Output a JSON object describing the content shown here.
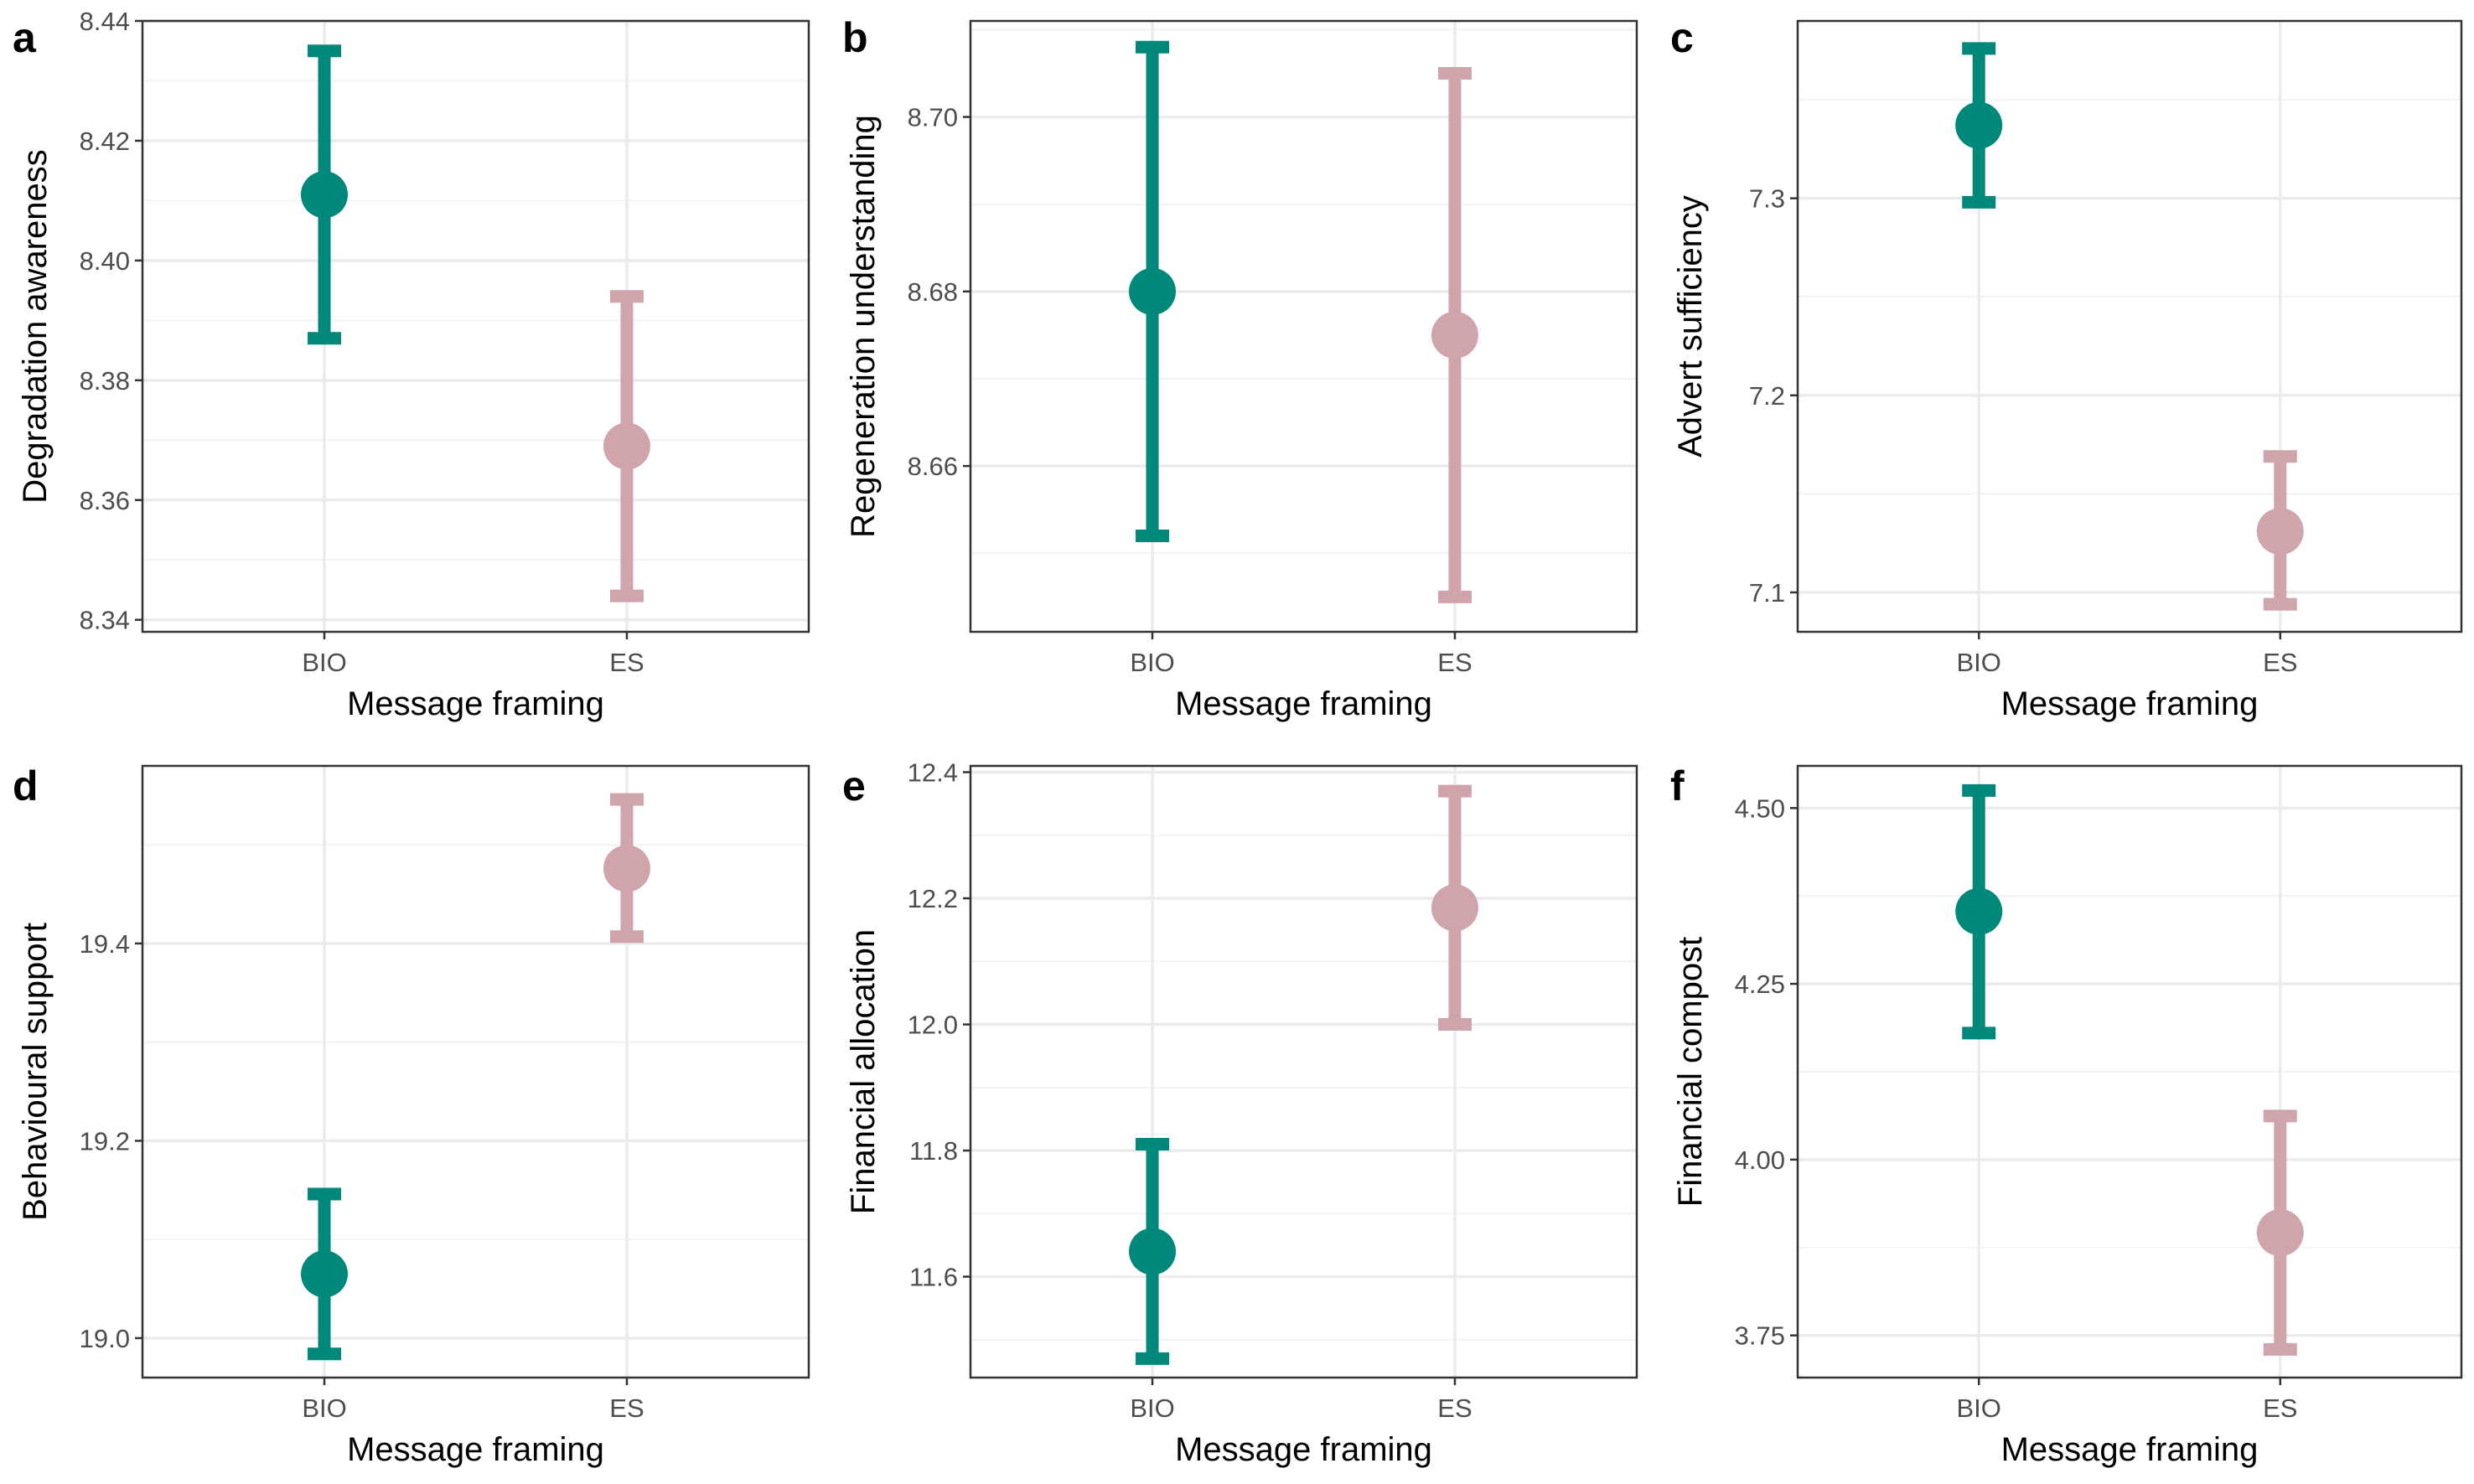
{
  "colors": {
    "BIO": "#00897b",
    "ES": "#d0a4ab",
    "grid_major": "#ebebeb",
    "grid_minor": "#f3f3f3",
    "panel_border": "#333333"
  },
  "chart_data": [
    {
      "panel": "a",
      "type": "errorbar",
      "xlabel": "Message framing",
      "ylabel": "Degradation awareness",
      "categories": [
        "BIO",
        "ES"
      ],
      "ylim": [
        8.338,
        8.44
      ],
      "yticks": [
        8.34,
        8.36,
        8.38,
        8.4,
        8.42,
        8.44
      ],
      "yticklabels": [
        "8.34",
        "8.36",
        "8.38",
        "8.40",
        "8.42",
        "8.44"
      ],
      "points": [
        {
          "category": "BIO",
          "mean": 8.411,
          "lower": 8.387,
          "upper": 8.435
        },
        {
          "category": "ES",
          "mean": 8.369,
          "lower": 8.344,
          "upper": 8.394
        }
      ]
    },
    {
      "panel": "b",
      "type": "errorbar",
      "xlabel": "Message framing",
      "ylabel": "Regeneration understanding",
      "categories": [
        "BIO",
        "ES"
      ],
      "ylim": [
        8.641,
        8.711
      ],
      "yticks": [
        8.66,
        8.68,
        8.7
      ],
      "yticklabels": [
        "8.66",
        "8.68",
        "8.70"
      ],
      "points": [
        {
          "category": "BIO",
          "mean": 8.68,
          "lower": 8.652,
          "upper": 8.708
        },
        {
          "category": "ES",
          "mean": 8.675,
          "lower": 8.645,
          "upper": 8.705
        }
      ]
    },
    {
      "panel": "c",
      "type": "errorbar",
      "xlabel": "Message framing",
      "ylabel": "Advert sufficiency",
      "categories": [
        "BIO",
        "ES"
      ],
      "ylim": [
        7.08,
        7.39
      ],
      "yticks": [
        7.1,
        7.2,
        7.3
      ],
      "yticklabels": [
        "7.1",
        "7.2",
        "7.3"
      ],
      "points": [
        {
          "category": "BIO",
          "mean": 7.337,
          "lower": 7.298,
          "upper": 7.376
        },
        {
          "category": "ES",
          "mean": 7.131,
          "lower": 7.094,
          "upper": 7.169
        }
      ]
    },
    {
      "panel": "d",
      "type": "errorbar",
      "xlabel": "Message framing",
      "ylabel": "Behavioural support",
      "categories": [
        "BIO",
        "ES"
      ],
      "ylim": [
        18.96,
        19.58
      ],
      "yticks": [
        19.0,
        19.2,
        19.4
      ],
      "yticklabels": [
        "19.0",
        "19.2",
        "19.4"
      ],
      "points": [
        {
          "category": "BIO",
          "mean": 19.065,
          "lower": 18.984,
          "upper": 19.146
        },
        {
          "category": "ES",
          "mean": 19.476,
          "lower": 19.407,
          "upper": 19.546
        }
      ]
    },
    {
      "panel": "e",
      "type": "errorbar",
      "xlabel": "Message framing",
      "ylabel": "Financial allocation",
      "categories": [
        "BIO",
        "ES"
      ],
      "ylim": [
        11.44,
        12.41
      ],
      "yticks": [
        11.6,
        11.8,
        12.0,
        12.2,
        12.4
      ],
      "yticklabels": [
        "11.6",
        "11.8",
        "12.0",
        "12.2",
        "12.4"
      ],
      "points": [
        {
          "category": "BIO",
          "mean": 11.64,
          "lower": 11.47,
          "upper": 11.81
        },
        {
          "category": "ES",
          "mean": 12.185,
          "lower": 12.0,
          "upper": 12.37
        }
      ]
    },
    {
      "panel": "f",
      "type": "errorbar",
      "xlabel": "Message framing",
      "ylabel": "Financial compost",
      "categories": [
        "BIO",
        "ES"
      ],
      "ylim": [
        3.69,
        4.56
      ],
      "yticks": [
        3.75,
        4.0,
        4.25,
        4.5
      ],
      "yticklabels": [
        "3.75",
        "4.00",
        "4.25",
        "4.50"
      ],
      "points": [
        {
          "category": "BIO",
          "mean": 4.353,
          "lower": 4.18,
          "upper": 4.525
        },
        {
          "category": "ES",
          "mean": 3.896,
          "lower": 3.73,
          "upper": 4.062
        }
      ]
    }
  ]
}
